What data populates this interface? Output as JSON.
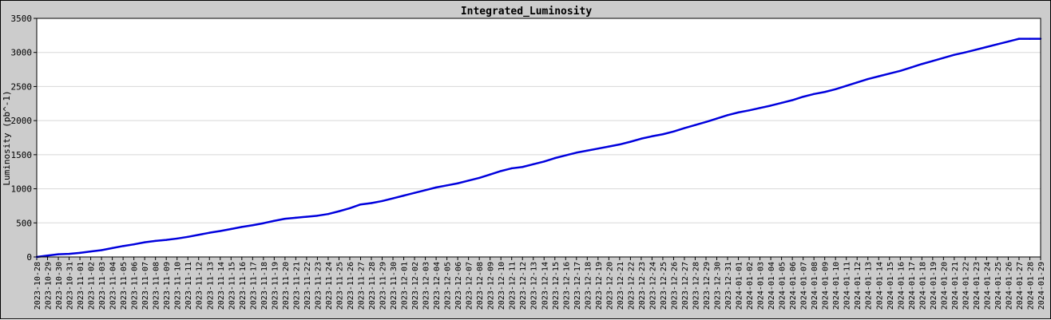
{
  "chart_data": {
    "type": "line",
    "title": "Integrated_Luminosity",
    "xlabel": "",
    "ylabel": "Luminosity (pb^-1)",
    "ylim": [
      0,
      3500
    ],
    "yticks": [
      0,
      500,
      1000,
      1500,
      2000,
      2500,
      3000,
      3500
    ],
    "grid": true,
    "colors": {
      "line": "#0000dd",
      "plot_bg": "#ffffff",
      "frame_bg": "#cccccc",
      "grid": "#d8d8d8"
    },
    "x": [
      "2023-10-28",
      "2023-10-29",
      "2023-10-30",
      "2023-10-31",
      "2023-11-01",
      "2023-11-02",
      "2023-11-03",
      "2023-11-04",
      "2023-11-05",
      "2023-11-06",
      "2023-11-07",
      "2023-11-08",
      "2023-11-09",
      "2023-11-10",
      "2023-11-11",
      "2023-11-12",
      "2023-11-13",
      "2023-11-14",
      "2023-11-15",
      "2023-11-16",
      "2023-11-17",
      "2023-11-18",
      "2023-11-19",
      "2023-11-20",
      "2023-11-21",
      "2023-11-22",
      "2023-11-23",
      "2023-11-24",
      "2023-11-25",
      "2023-11-26",
      "2023-11-27",
      "2023-11-28",
      "2023-11-29",
      "2023-11-30",
      "2023-12-01",
      "2023-12-02",
      "2023-12-03",
      "2023-12-04",
      "2023-12-05",
      "2023-12-06",
      "2023-12-07",
      "2023-12-08",
      "2023-12-09",
      "2023-12-10",
      "2023-12-11",
      "2023-12-12",
      "2023-12-13",
      "2023-12-14",
      "2023-12-15",
      "2023-12-16",
      "2023-12-17",
      "2023-12-18",
      "2023-12-19",
      "2023-12-20",
      "2023-12-21",
      "2023-12-22",
      "2023-12-23",
      "2023-12-24",
      "2023-12-25",
      "2023-12-26",
      "2023-12-27",
      "2023-12-28",
      "2023-12-29",
      "2023-12-30",
      "2023-12-31",
      "2024-01-01",
      "2024-01-02",
      "2024-01-03",
      "2024-01-04",
      "2024-01-05",
      "2024-01-06",
      "2024-01-07",
      "2024-01-08",
      "2024-01-09",
      "2024-01-10",
      "2024-01-11",
      "2024-01-12",
      "2024-01-13",
      "2024-01-14",
      "2024-01-15",
      "2024-01-16",
      "2024-01-17",
      "2024-01-18",
      "2024-01-19",
      "2024-01-20",
      "2024-01-21",
      "2024-01-22",
      "2024-01-23",
      "2024-01-24",
      "2024-01-25",
      "2024-01-26",
      "2024-01-27",
      "2024-01-28",
      "2024-01-29"
    ],
    "series": [
      {
        "values": [
          0,
          20,
          40,
          45,
          60,
          80,
          100,
          130,
          160,
          185,
          215,
          235,
          250,
          270,
          295,
          325,
          355,
          380,
          410,
          440,
          465,
          495,
          530,
          560,
          575,
          590,
          605,
          630,
          670,
          715,
          770,
          790,
          820,
          860,
          900,
          940,
          980,
          1020,
          1050,
          1080,
          1120,
          1160,
          1210,
          1260,
          1300,
          1320,
          1360,
          1400,
          1450,
          1490,
          1530,
          1560,
          1590,
          1620,
          1650,
          1690,
          1735,
          1770,
          1800,
          1840,
          1890,
          1935,
          1980,
          2030,
          2080,
          2120,
          2150,
          2185,
          2220,
          2260,
          2300,
          2350,
          2390,
          2420,
          2460,
          2510,
          2560,
          2610,
          2650,
          2690,
          2730,
          2780,
          2830,
          2875,
          2920,
          2965,
          3000,
          3040,
          3080,
          3120,
          3160,
          3200,
          3200,
          3200
        ]
      }
    ]
  }
}
